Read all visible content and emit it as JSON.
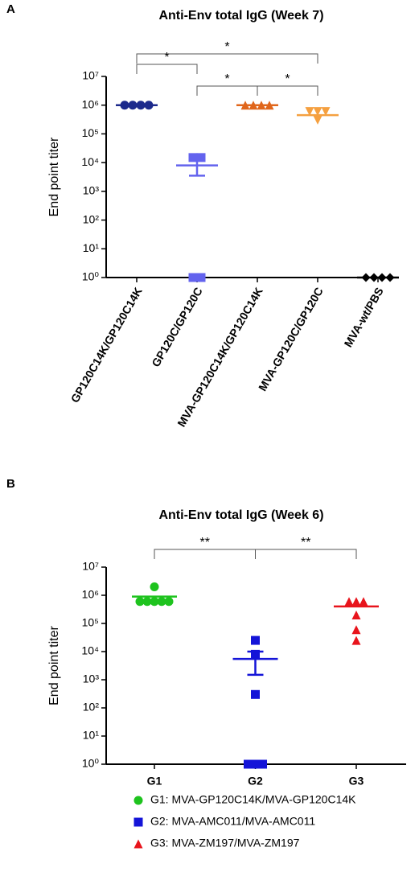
{
  "chart_data": [
    {
      "type": "scatter",
      "panel": "A",
      "title": "Anti-Env total IgG (Week 7)",
      "ylabel": "End point titer",
      "log_y": true,
      "ylim": [
        1,
        10000000
      ],
      "yticks": [
        {
          "value": 1,
          "label": "10⁰"
        },
        {
          "value": 10,
          "label": "10¹"
        },
        {
          "value": 100,
          "label": "10²"
        },
        {
          "value": 1000,
          "label": "10³"
        },
        {
          "value": 10000,
          "label": "10⁴"
        },
        {
          "value": 100000,
          "label": "10⁵"
        },
        {
          "value": 1000000,
          "label": "10⁶"
        },
        {
          "value": 10000000,
          "label": "10⁷"
        }
      ],
      "categories": [
        "GP120C14K/GP120C14K",
        "GP120C/GP120C",
        "MVA-GP120C14K/GP120C14K",
        "MVA-GP120C/GP120C",
        "MVA-wt/PBS"
      ],
      "series": [
        {
          "color": "#1c2a8c",
          "marker": "circle",
          "values": [
            1000000,
            1000000,
            1000000,
            1000000
          ],
          "mean": 1000000
        },
        {
          "color": "#6363ee",
          "marker": "square",
          "values": [
            15000,
            15000,
            1,
            1
          ],
          "mean": 8000,
          "error_low": 3500,
          "error_high": 15000
        },
        {
          "color": "#e0661b",
          "marker": "triangle",
          "values": [
            1000000,
            1000000,
            1000000,
            1000000
          ],
          "mean": 1000000
        },
        {
          "color": "#f5a040",
          "marker": "triangle-down",
          "values": [
            600000,
            600000,
            600000,
            300000
          ],
          "mean": 450000
        },
        {
          "color": "#000000",
          "marker": "diamond",
          "values": [
            1,
            1,
            1,
            1
          ],
          "mean": 1
        }
      ],
      "significance": [
        {
          "from": 0,
          "to": 3,
          "label": "*"
        },
        {
          "from": 0,
          "to": 1,
          "label": "*"
        },
        {
          "from": 1,
          "to": 2,
          "label": "*"
        },
        {
          "from": 2,
          "to": 3,
          "label": "*"
        }
      ]
    },
    {
      "type": "scatter",
      "panel": "B",
      "title": "Anti-Env total IgG (Week 6)",
      "ylabel": "End point titer",
      "log_y": true,
      "ylim": [
        1,
        10000000
      ],
      "yticks": [
        {
          "value": 1,
          "label": "10⁰"
        },
        {
          "value": 10,
          "label": "10¹"
        },
        {
          "value": 100,
          "label": "10²"
        },
        {
          "value": 1000,
          "label": "10³"
        },
        {
          "value": 10000,
          "label": "10⁴"
        },
        {
          "value": 100000,
          "label": "10⁵"
        },
        {
          "value": 1000000,
          "label": "10⁶"
        },
        {
          "value": 10000000,
          "label": "10⁷"
        }
      ],
      "categories": [
        "G1",
        "G2",
        "G3"
      ],
      "series": [
        {
          "name": "G1: MVA-GP120C14K/MVA-GP120C14K",
          "color": "#1ec31e",
          "marker": "circle",
          "values": [
            2000000,
            600000,
            600000,
            600000,
            600000,
            600000
          ],
          "mean": 900000
        },
        {
          "name": "G2: MVA-AMC011/MVA-AMC011",
          "color": "#1414d8",
          "marker": "square",
          "values": [
            25000,
            8000,
            300,
            1,
            1,
            1
          ],
          "mean": 5500,
          "error_low": 1500,
          "error_high": 10000
        },
        {
          "name": "G3: MVA-ZM197/MVA-ZM197",
          "color": "#e8141c",
          "marker": "triangle",
          "values": [
            600000,
            600000,
            600000,
            200000,
            60000,
            25000
          ],
          "mean": 400000
        }
      ],
      "significance": [
        {
          "from": 0,
          "to": 1,
          "label": "**"
        },
        {
          "from": 1,
          "to": 2,
          "label": "**"
        }
      ]
    }
  ]
}
